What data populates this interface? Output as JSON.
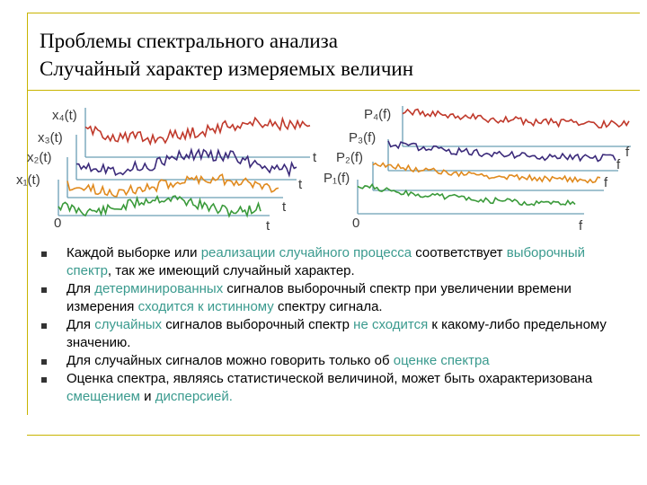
{
  "title": {
    "line1": "Проблемы спектрального анализа",
    "line2": "Случайный характер измеряемых величин"
  },
  "figure_left": {
    "labels": [
      "x₄(t)",
      "x₃(t)",
      "x₂(t)",
      "x₁(t)"
    ],
    "origin": "0",
    "axis_label": "t"
  },
  "figure_right": {
    "labels": [
      "P₄(f)",
      "P₃(f)",
      "P₂(f)",
      "P₁(f)"
    ],
    "origin": "0",
    "axis_label": "f"
  },
  "colors": {
    "rule": "#c8b400",
    "highlight": "#3a9a8e",
    "trace_red": "#c0392b",
    "trace_purple": "#3b2a7a",
    "trace_orange": "#e08a1e",
    "trace_green": "#3a9a3a",
    "axis": "#6a9fb5"
  },
  "bullets": [
    [
      {
        "t": "Каждой выборке или ",
        "h": false
      },
      {
        "t": "реализации случайного процесса",
        "h": true
      },
      {
        "t": " соответствует ",
        "h": false
      },
      {
        "t": "выборочный спектр",
        "h": true
      },
      {
        "t": ", так же имеющий случайный характер.",
        "h": false
      }
    ],
    [
      {
        "t": "Для ",
        "h": false
      },
      {
        "t": "детерминированных",
        "h": true
      },
      {
        "t": " сигналов выборочный спектр при увеличении времени измерения ",
        "h": false
      },
      {
        "t": "сходится к истинному",
        "h": true
      },
      {
        "t": " спектру сигнала.",
        "h": false
      }
    ],
    [
      {
        "t": "Для ",
        "h": false
      },
      {
        "t": "случайных",
        "h": true
      },
      {
        "t": " сигналов выборочный спектр ",
        "h": false
      },
      {
        "t": "не сходится",
        "h": true
      },
      {
        "t": " к какому-либо предельному значению.",
        "h": false
      }
    ],
    [
      {
        "t": "Для случайных сигналов можно говорить только об ",
        "h": false
      },
      {
        "t": "оценке спектра",
        "h": true
      }
    ],
    [
      {
        "t": "Оценка спектра, являясь статистической величиной, может быть охарактеризована ",
        "h": false
      },
      {
        "t": "смещением",
        "h": true
      },
      {
        "t": " и ",
        "h": false
      },
      {
        "t": "дисперсией.",
        "h": true
      }
    ]
  ]
}
